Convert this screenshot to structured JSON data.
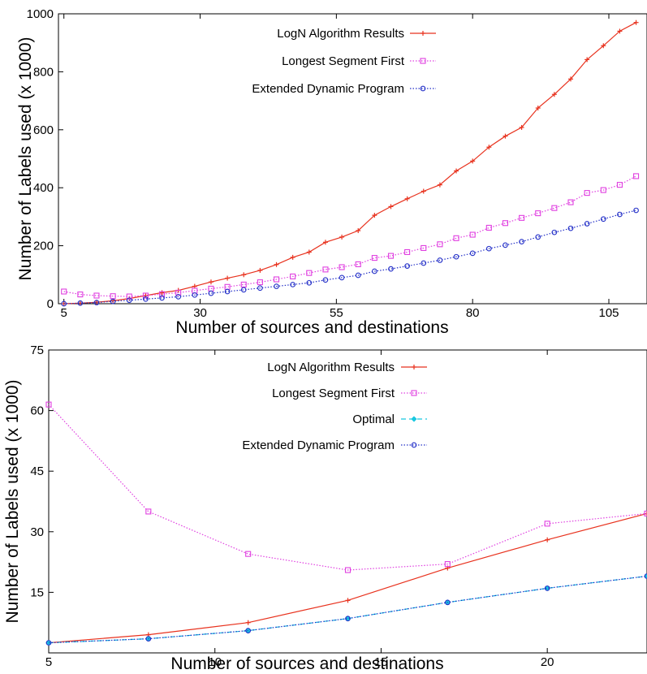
{
  "chart_data": [
    {
      "type": "line",
      "xlabel": "Number of sources and destinations",
      "ylabel": "Number of Labels used (x 1000)",
      "xlim": [
        4,
        112
      ],
      "ylim": [
        0,
        1000
      ],
      "xticks": [
        5,
        30,
        55,
        80,
        105
      ],
      "yticks": [
        0,
        200,
        400,
        600,
        800,
        1000
      ],
      "grid": false,
      "legend_position": "top-center",
      "series": [
        {
          "name": "LogN Algorithm Results",
          "color": "#e8321e",
          "marker": "plus",
          "dash": "solid",
          "x": [
            5,
            8,
            11,
            14,
            17,
            20,
            23,
            26,
            29,
            32,
            35,
            38,
            41,
            44,
            47,
            50,
            53,
            56,
            59,
            62,
            65,
            68,
            71,
            74,
            77,
            80,
            83,
            86,
            89,
            92,
            95,
            98,
            101,
            104,
            107,
            110
          ],
          "y": [
            0,
            2,
            5,
            10,
            18,
            28,
            38,
            46,
            60,
            75,
            88,
            100,
            115,
            135,
            160,
            178,
            212,
            230,
            252,
            305,
            335,
            362,
            388,
            410,
            458,
            492,
            540,
            578,
            608,
            675,
            722,
            775,
            842,
            890,
            940,
            970
          ]
        },
        {
          "name": "Longest Segment First",
          "color": "#e040e0",
          "marker": "square",
          "dash": "dotted",
          "x": [
            5,
            8,
            11,
            14,
            17,
            20,
            23,
            26,
            29,
            32,
            35,
            38,
            41,
            44,
            47,
            50,
            53,
            56,
            59,
            62,
            65,
            68,
            71,
            74,
            77,
            80,
            83,
            86,
            89,
            92,
            95,
            98,
            101,
            104,
            107,
            110
          ],
          "y": [
            42,
            32,
            28,
            26,
            25,
            28,
            33,
            38,
            45,
            52,
            58,
            66,
            74,
            84,
            94,
            106,
            118,
            126,
            136,
            158,
            165,
            178,
            192,
            205,
            226,
            238,
            262,
            278,
            296,
            312,
            330,
            350,
            382,
            392,
            410,
            440
          ]
        },
        {
          "name": "Extended Dynamic Program",
          "color": "#2430c8",
          "marker": "circle",
          "dash": "dotted",
          "x": [
            5,
            8,
            11,
            14,
            17,
            20,
            23,
            26,
            29,
            32,
            35,
            38,
            41,
            44,
            47,
            50,
            53,
            56,
            59,
            62,
            65,
            68,
            71,
            74,
            77,
            80,
            83,
            86,
            89,
            92,
            95,
            98,
            101,
            104,
            107,
            110
          ],
          "y": [
            0,
            2,
            4,
            8,
            12,
            16,
            20,
            24,
            30,
            36,
            42,
            48,
            54,
            60,
            66,
            72,
            82,
            90,
            98,
            112,
            120,
            130,
            140,
            150,
            162,
            174,
            190,
            202,
            214,
            230,
            246,
            260,
            276,
            292,
            308,
            322
          ]
        }
      ]
    },
    {
      "type": "line",
      "xlabel": "Number of sources and destinations",
      "ylabel": "Number of Labels used (x 1000)",
      "xlim": [
        5,
        23
      ],
      "ylim": [
        0,
        75
      ],
      "xticks": [
        5,
        10,
        15,
        20
      ],
      "yticks": [
        15,
        30,
        45,
        60,
        75
      ],
      "grid": false,
      "legend_position": "top-center",
      "series": [
        {
          "name": "LogN Algorithm Results",
          "color": "#e8321e",
          "marker": "plus",
          "dash": "solid",
          "x": [
            5,
            8,
            11,
            14,
            17,
            20,
            23
          ],
          "y": [
            2.5,
            4.5,
            7.5,
            13,
            21,
            28,
            34.5
          ]
        },
        {
          "name": "Longest Segment First",
          "color": "#e040e0",
          "marker": "square",
          "dash": "dotted",
          "x": [
            5,
            8,
            11,
            14,
            17,
            20,
            23
          ],
          "y": [
            61.5,
            35,
            24.5,
            20.5,
            22,
            32,
            34.5
          ]
        },
        {
          "name": "Optimal",
          "color": "#18c8e0",
          "marker": "diamond",
          "dash": "dashed",
          "x": [
            5,
            8,
            11,
            14,
            17,
            20,
            23
          ],
          "y": [
            2.5,
            3.5,
            5.5,
            8.5,
            12.5,
            16,
            19
          ]
        },
        {
          "name": "Extended Dynamic Program",
          "color": "#2430c8",
          "marker": "circle",
          "dash": "dotted",
          "x": [
            5,
            8,
            11,
            14,
            17,
            20,
            23
          ],
          "y": [
            2.5,
            3.5,
            5.5,
            8.5,
            12.5,
            16,
            19
          ]
        }
      ]
    }
  ]
}
